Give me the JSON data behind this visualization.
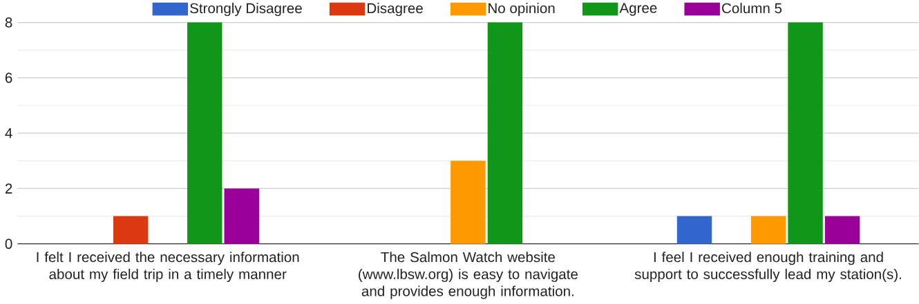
{
  "chart_data": {
    "type": "bar",
    "categories": [
      "I felt I received the necessary information about my field trip in a timely manner",
      "The Salmon Watch website (www.lbsw.org) is easy to navigate and provides enough information.",
      "I feel I received enough training and support to successfully lead my station(s)."
    ],
    "series": [
      {
        "name": "Strongly Disagree",
        "color": "#3366cc",
        "values": [
          0,
          0,
          1
        ]
      },
      {
        "name": "Disagree",
        "color": "#dc3912",
        "values": [
          1,
          0,
          0
        ]
      },
      {
        "name": "No opinion",
        "color": "#ff9900",
        "values": [
          0,
          3,
          1
        ]
      },
      {
        "name": "Agree",
        "color": "#109618",
        "values": [
          8,
          8,
          8
        ]
      },
      {
        "name": "Column 5",
        "color": "#990099",
        "values": [
          2,
          0,
          1
        ]
      }
    ],
    "ylim": [
      0,
      8
    ],
    "yticks": [
      0,
      2,
      4,
      6,
      8
    ],
    "grid": "y",
    "legend": "top"
  }
}
